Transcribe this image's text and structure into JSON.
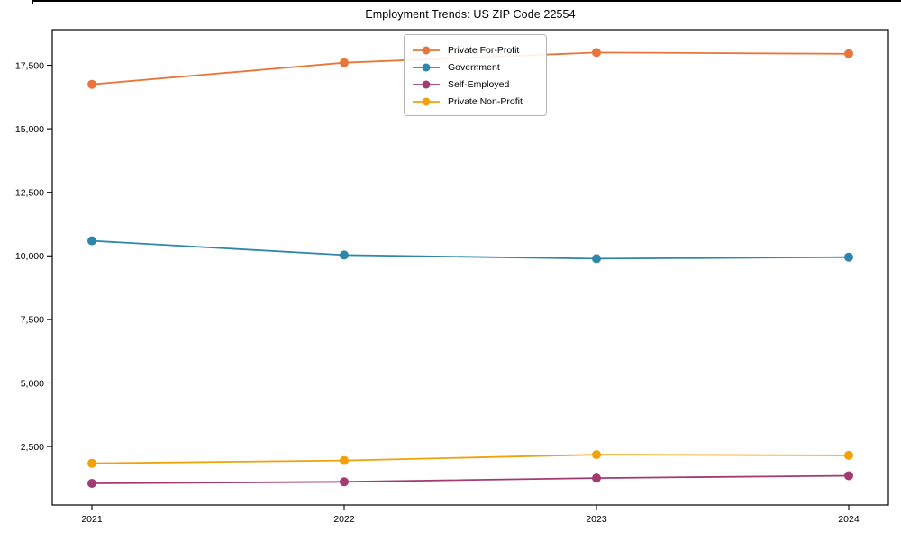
{
  "title": "Employment Trends: US ZIP Code 22554",
  "chart_data": {
    "type": "line",
    "title": "Employment Trends: US ZIP Code 22554",
    "xlabel": "",
    "ylabel": "",
    "x": [
      "2021",
      "2022",
      "2023",
      "2024"
    ],
    "y_ticks": [
      2500,
      5000,
      7500,
      10000,
      12500,
      15000,
      17500
    ],
    "y_tick_labels": [
      "2,500",
      "5,000",
      "7,500",
      "10,000",
      "12,500",
      "15,000",
      "17,500"
    ],
    "ylim": [
      200,
      18900
    ],
    "grid": false,
    "legend_position": "upper-center",
    "marker": "circle",
    "series": [
      {
        "name": "Private For-Profit",
        "color": "#E8763B",
        "values": [
          16750,
          17600,
          18000,
          17950
        ]
      },
      {
        "name": "Government",
        "color": "#2E86AB",
        "values": [
          10590,
          10030,
          9890,
          9950
        ]
      },
      {
        "name": "Self-Employed",
        "color": "#A23B72",
        "values": [
          1050,
          1110,
          1260,
          1350
        ]
      },
      {
        "name": "Private Non-Profit",
        "color": "#F1A208",
        "values": [
          1840,
          1950,
          2180,
          2150
        ]
      }
    ]
  }
}
